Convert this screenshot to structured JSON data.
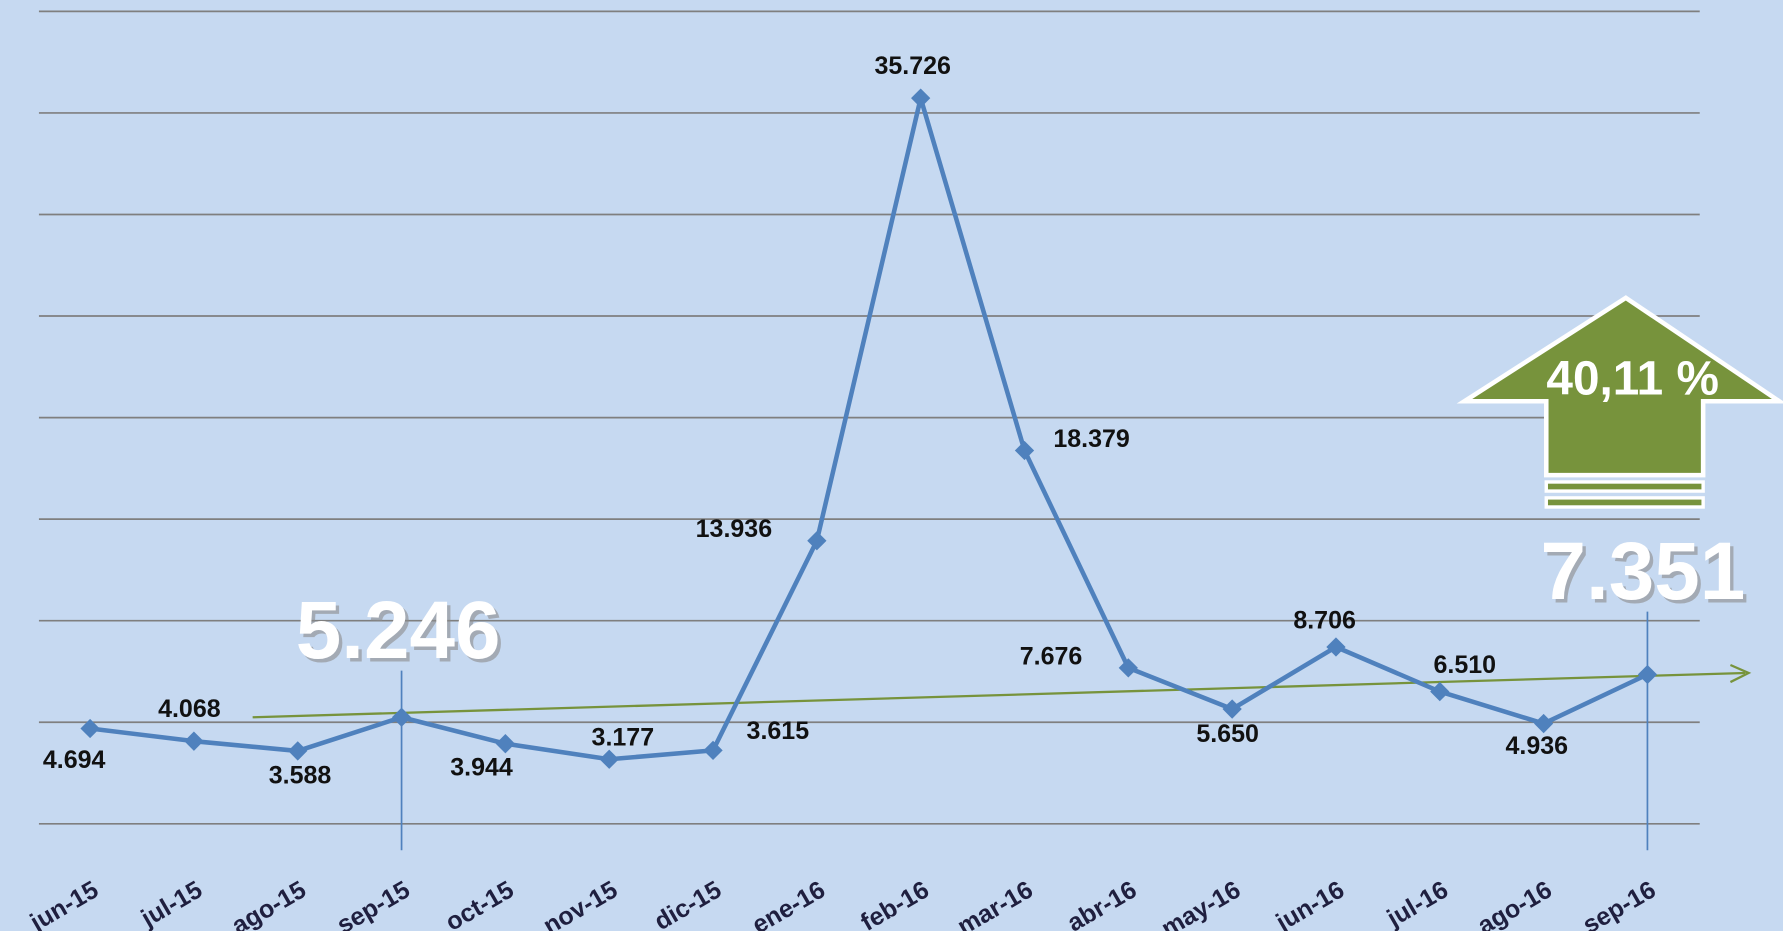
{
  "chart_data": {
    "type": "line",
    "categories": [
      "jun-15",
      "jul-15",
      "ago-15",
      "sep-15",
      "oct-15",
      "nov-15",
      "dic-15",
      "ene-16",
      "feb-16",
      "mar-16",
      "abr-16",
      "may-16",
      "jun-16",
      "jul-16",
      "ago-16",
      "sep-16"
    ],
    "series": [
      {
        "name": null,
        "color": "#4f81bd",
        "values": [
          4694,
          4068,
          3588,
          5246,
          3944,
          3177,
          3615,
          13936,
          35726,
          18379,
          7676,
          5650,
          8706,
          6510,
          4936,
          7351
        ],
        "value_labels": [
          "4.694",
          "4.068",
          "3.588",
          "5.246",
          "3.944",
          "3.177",
          "3.615",
          "13.936",
          "35.726",
          "18.379",
          "7.676",
          "5.650",
          "8.706",
          "6.510",
          "4.936",
          "7.351"
        ]
      }
    ],
    "ylim": [
      0,
      40000
    ],
    "yticks": [
      0,
      5000,
      10000,
      15000,
      20000,
      25000,
      30000,
      35000,
      40000
    ],
    "grid": true,
    "annotations": [
      "40,11 %"
    ]
  }
}
